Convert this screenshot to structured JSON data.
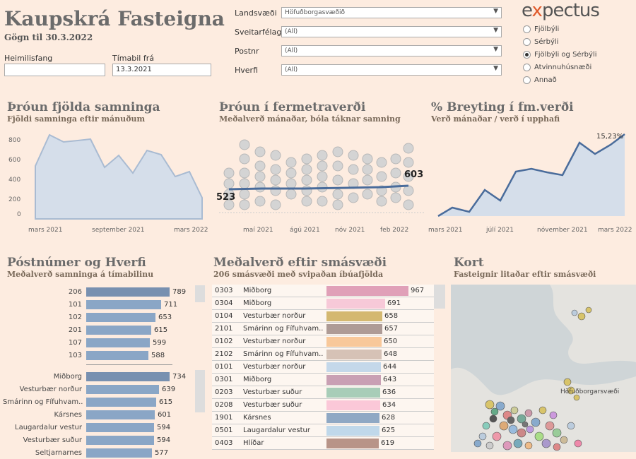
{
  "header": {
    "title": "Kaupskrá Fasteigna",
    "subtitle": "Gögn til 30.3.2022"
  },
  "filters": {
    "address_label": "Heimilisfang",
    "address_value": "",
    "from_label": "Tímabil frá",
    "from_value": "13.3.2021",
    "region_label": "Landsvæði",
    "region_value": "Höfuðborgasvæðið",
    "municipality_label": "Sveitarfélag",
    "municipality_value": "(All)",
    "postcode_label": "Postnr",
    "postcode_value": "(All)",
    "district_label": "Hverfi",
    "district_value": "(All)"
  },
  "logo": {
    "text_pre": "e",
    "text_x": "x",
    "text_post": "pectus"
  },
  "property_types": [
    {
      "label": "Fjölbýli",
      "selected": false
    },
    {
      "label": "Sérbýli",
      "selected": false
    },
    {
      "label": "Fjölbýli og Sérbýli",
      "selected": true
    },
    {
      "label": "Atvinnuhúsnæði",
      "selected": false
    },
    {
      "label": "Annað",
      "selected": false
    }
  ],
  "chart1": {
    "title": "Þróun fjölda samninga",
    "subtitle": "Fjöldi samninga eftir mánuðum",
    "yticks": [
      "800",
      "600",
      "400",
      "200",
      "0"
    ],
    "xticks": [
      "mars 2021",
      "september 2021",
      "mars 2022"
    ]
  },
  "chart2": {
    "title": "Þróun í fermetraverði",
    "subtitle": "Meðalverð mánaðar, bóla táknar samning",
    "start_label": "523",
    "end_label": "603",
    "xticks": [
      "maí 2021",
      "ágú 2021",
      "nóv 2021",
      "feb 2022"
    ]
  },
  "chart3": {
    "title": "% Breyting í fm.verði",
    "subtitle": "Verð mánaðar / verð í upphafi",
    "end_label": "15,23%",
    "xticks": [
      "mars 2021",
      "júlí 2021",
      "nóvember 2021",
      "mars 2022"
    ]
  },
  "postnr": {
    "title": "Póstnúmer og Hverfi",
    "subtitle": "Meðalverð samninga á tímabilinu",
    "postcodes": [
      {
        "label": "206",
        "value": "789"
      },
      {
        "label": "101",
        "value": "711"
      },
      {
        "label": "102",
        "value": "653"
      },
      {
        "label": "201",
        "value": "615"
      },
      {
        "label": "107",
        "value": "599"
      },
      {
        "label": "103",
        "value": "588"
      }
    ],
    "districts": [
      {
        "label": "Miðborg",
        "value": "734"
      },
      {
        "label": "Vesturbær norður",
        "value": "639"
      },
      {
        "label": "Smárinn og Fífuhvam..",
        "value": "615"
      },
      {
        "label": "Kársnes",
        "value": "601"
      },
      {
        "label": "Laugardalur vestur",
        "value": "594"
      },
      {
        "label": "Vesturbær suður",
        "value": "594"
      },
      {
        "label": "Seltjarnarnes",
        "value": "577"
      }
    ]
  },
  "smasvaedi": {
    "title": "Meðalverð eftir smásvæði",
    "subtitle": "206 smásvæði með svipaðan íbúafjölda",
    "rows": [
      {
        "code": "0303",
        "name": "Miðborg",
        "value": "967",
        "color": "#e0a0b8"
      },
      {
        "code": "0304",
        "name": "Miðborg",
        "value": "691",
        "color": "#f7c9d8"
      },
      {
        "code": "0104",
        "name": "Vesturbær norður",
        "value": "658",
        "color": "#d4b870"
      },
      {
        "code": "2101",
        "name": "Smárinn og Fífuhvam..",
        "value": "657",
        "color": "#ae9b96"
      },
      {
        "code": "0102",
        "name": "Vesturbær norður",
        "value": "650",
        "color": "#f8c89a"
      },
      {
        "code": "2102",
        "name": "Smárinn og Fífuhvam..",
        "value": "648",
        "color": "#d6c2b6"
      },
      {
        "code": "0101",
        "name": "Vesturbær norður",
        "value": "644",
        "color": "#c4d8ea"
      },
      {
        "code": "0301",
        "name": "Miðborg",
        "value": "643",
        "color": "#c9a0b4"
      },
      {
        "code": "0203",
        "name": "Vesturbær suður",
        "value": "636",
        "color": "#a8cdb8"
      },
      {
        "code": "0208",
        "name": "Vesturbær suður",
        "value": "634",
        "color": "#fbc8d8"
      },
      {
        "code": "1901",
        "name": "Kársnes",
        "value": "628",
        "color": "#8fa8c4"
      },
      {
        "code": "0501",
        "name": "Laugardalur vestur",
        "value": "625",
        "color": "#c0d8ea"
      },
      {
        "code": "0403",
        "name": "Hlíðar",
        "value": "619",
        "color": "#b89488"
      }
    ]
  },
  "map": {
    "title": "Kort",
    "subtitle": "Fasteignir litaðar eftir smásvæði",
    "region_label": "Höfuðborgarsvæði"
  },
  "colors": {
    "area_fill": "#d5deea",
    "area_line": "#a9bbd2",
    "line_dark": "#4a6c9b",
    "bar_blue": "#8aa6c6",
    "bar_top": "#7890b0"
  }
}
